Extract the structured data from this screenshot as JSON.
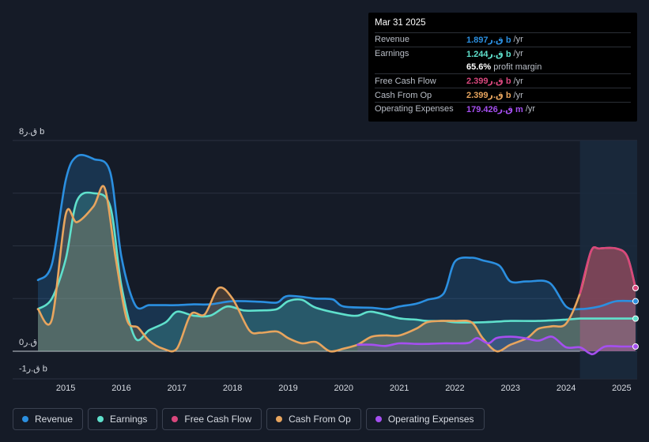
{
  "tooltip": {
    "date": "Mar 31 2025",
    "rows": [
      {
        "label": "Revenue",
        "value": "1.897ق.ر b",
        "unit": "/yr",
        "color": "#2b8fe0"
      },
      {
        "label": "Earnings",
        "value": "1.244ق.ر b",
        "unit": "/yr",
        "color": "#5fe0cc"
      },
      {
        "label": "",
        "value": "65.6%",
        "unit": "profit margin",
        "color": "#ffffff"
      },
      {
        "label": "Free Cash Flow",
        "value": "2.399ق.ر b",
        "unit": "/yr",
        "color": "#d9477d"
      },
      {
        "label": "Cash From Op",
        "value": "2.399ق.ر b",
        "unit": "/yr",
        "color": "#e8a55e"
      },
      {
        "label": "Operating Expenses",
        "value": "179.426ق.ر m",
        "unit": "/yr",
        "color": "#a54ff0"
      }
    ]
  },
  "legend": [
    {
      "label": "Revenue",
      "color": "#2b8fe0"
    },
    {
      "label": "Earnings",
      "color": "#5fe0cc"
    },
    {
      "label": "Free Cash Flow",
      "color": "#d9477d"
    },
    {
      "label": "Cash From Op",
      "color": "#e8a55e"
    },
    {
      "label": "Operating Expenses",
      "color": "#a54ff0"
    }
  ],
  "chart_data": {
    "type": "area",
    "title": "",
    "xlabel": "",
    "ylabel": "",
    "ylim": [
      -1,
      8
    ],
    "xlim": [
      2014.5,
      2025.25
    ],
    "y_tick_labels": [
      {
        "value": 8,
        "label": "8ق.ر b"
      },
      {
        "value": 0,
        "label": "0ق.ر"
      },
      {
        "value": -1,
        "label": "-1ق.ر b"
      }
    ],
    "x_ticks": [
      2015,
      2016,
      2017,
      2018,
      2019,
      2020,
      2021,
      2022,
      2023,
      2024,
      2025
    ],
    "x_tick_labels": [
      "2015",
      "2016",
      "2017",
      "2018",
      "2019",
      "2020",
      "2021",
      "2022",
      "2023",
      "2024",
      "2025"
    ],
    "forecast_start": 2024.25,
    "series": [
      {
        "name": "Revenue",
        "color": "#2b8fe0",
        "x": [
          2014.5,
          2014.75,
          2015.0,
          2015.2,
          2015.5,
          2015.8,
          2016.0,
          2016.25,
          2016.5,
          2016.8,
          2017.0,
          2017.3,
          2017.6,
          2018.0,
          2018.5,
          2018.8,
          2019.0,
          2019.5,
          2019.8,
          2020.0,
          2020.5,
          2020.8,
          2021.0,
          2021.3,
          2021.5,
          2021.8,
          2022.0,
          2022.3,
          2022.5,
          2022.8,
          2023.0,
          2023.3,
          2023.7,
          2024.0,
          2024.25,
          2024.6,
          2024.9,
          2025.25
        ],
        "values": [
          2.7,
          3.3,
          6.5,
          7.4,
          7.3,
          6.8,
          3.6,
          1.75,
          1.75,
          1.75,
          1.75,
          1.78,
          1.78,
          1.9,
          1.88,
          1.85,
          2.1,
          2.0,
          1.97,
          1.7,
          1.65,
          1.6,
          1.7,
          1.8,
          1.95,
          2.2,
          3.4,
          3.55,
          3.45,
          3.25,
          2.65,
          2.65,
          2.6,
          1.7,
          1.6,
          1.7,
          1.9,
          1.9
        ]
      },
      {
        "name": "Earnings",
        "color": "#5fe0cc",
        "x": [
          2014.5,
          2014.75,
          2015.0,
          2015.2,
          2015.5,
          2015.8,
          2016.0,
          2016.25,
          2016.5,
          2016.8,
          2017.0,
          2017.3,
          2017.6,
          2017.9,
          2018.2,
          2018.5,
          2018.8,
          2019.0,
          2019.25,
          2019.5,
          2020.0,
          2020.25,
          2020.5,
          2021.0,
          2021.3,
          2021.5,
          2021.8,
          2022.0,
          2022.5,
          2023.0,
          2023.5,
          2024.0,
          2024.25,
          2024.6,
          2025.25
        ],
        "values": [
          1.6,
          2.0,
          3.5,
          5.7,
          6.0,
          5.5,
          2.5,
          0.5,
          0.8,
          1.1,
          1.5,
          1.35,
          1.35,
          1.7,
          1.55,
          1.55,
          1.6,
          1.9,
          1.95,
          1.65,
          1.4,
          1.35,
          1.5,
          1.25,
          1.2,
          1.15,
          1.15,
          1.1,
          1.1,
          1.15,
          1.15,
          1.2,
          1.24,
          1.24,
          1.24
        ]
      },
      {
        "name": "Cash From Op",
        "color": "#e8a55e",
        "x": [
          2014.5,
          2014.75,
          2015.0,
          2015.2,
          2015.5,
          2015.7,
          2015.9,
          2016.1,
          2016.3,
          2016.5,
          2016.75,
          2017.0,
          2017.25,
          2017.5,
          2017.75,
          2018.0,
          2018.3,
          2018.5,
          2018.8,
          2019.0,
          2019.25,
          2019.5,
          2019.75,
          2020.0,
          2020.25,
          2020.5,
          2020.75,
          2021.0,
          2021.3,
          2021.5,
          2021.75,
          2022.0,
          2022.3,
          2022.5,
          2022.75,
          2023.0,
          2023.3,
          2023.5,
          2023.75,
          2024.0,
          2024.25,
          2024.45,
          2024.6,
          2024.9,
          2025.1,
          2025.25
        ],
        "values": [
          1.6,
          1.2,
          5.2,
          4.9,
          5.5,
          6.2,
          3.5,
          1.2,
          0.9,
          0.4,
          0.1,
          0.1,
          1.4,
          1.4,
          2.4,
          2.0,
          0.8,
          0.7,
          0.75,
          0.5,
          0.3,
          0.35,
          0.0,
          0.1,
          0.25,
          0.55,
          0.6,
          0.6,
          0.85,
          1.1,
          1.15,
          1.15,
          1.1,
          0.5,
          0.0,
          0.25,
          0.5,
          0.85,
          0.95,
          1.05,
          2.2,
          3.8,
          3.9,
          3.9,
          3.6,
          2.4
        ]
      },
      {
        "name": "Free Cash Flow",
        "color": "#d9477d",
        "x": [
          2024.25,
          2024.45,
          2024.6,
          2024.9,
          2025.1,
          2025.25
        ],
        "values": [
          2.2,
          3.8,
          3.9,
          3.9,
          3.6,
          2.4
        ]
      },
      {
        "name": "Operating Expenses",
        "color": "#a54ff0",
        "x": [
          2020.25,
          2020.5,
          2020.75,
          2021.0,
          2021.3,
          2021.5,
          2021.8,
          2022.0,
          2022.25,
          2022.4,
          2022.6,
          2022.75,
          2023.0,
          2023.25,
          2023.5,
          2023.75,
          2024.0,
          2024.25,
          2024.4,
          2024.5,
          2024.7,
          2025.0,
          2025.25
        ],
        "values": [
          0.25,
          0.25,
          0.2,
          0.3,
          0.28,
          0.28,
          0.3,
          0.3,
          0.32,
          0.5,
          0.3,
          0.5,
          0.55,
          0.5,
          0.4,
          0.55,
          0.15,
          0.15,
          -0.05,
          -0.1,
          0.18,
          0.18,
          0.18
        ]
      }
    ]
  }
}
